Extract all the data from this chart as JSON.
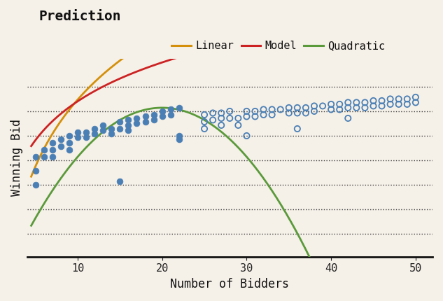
{
  "background_color": "#f5f0e8",
  "title": "Prediction",
  "xlabel": "Number of Bidders",
  "ylabel": "Winning Bid",
  "xlim": [
    4,
    52
  ],
  "ylim": [
    -0.05,
    1.08
  ],
  "legend_entries": [
    "Linear",
    "Model",
    "Quadratic"
  ],
  "linear_color": "#d4900a",
  "model_color": "#cc2222",
  "quadratic_color": "#5a9a3a",
  "scatter_filled_color": "#4a7fb5",
  "scatter_open_color": "#4a7fb5",
  "dotted_line_color": "#222222",
  "filled_scatter": [
    [
      5,
      0.52
    ],
    [
      5,
      0.44
    ],
    [
      5,
      0.36
    ],
    [
      6,
      0.56
    ],
    [
      6,
      0.52
    ],
    [
      7,
      0.6
    ],
    [
      7,
      0.56
    ],
    [
      7,
      0.52
    ],
    [
      8,
      0.62
    ],
    [
      8,
      0.58
    ],
    [
      9,
      0.64
    ],
    [
      9,
      0.6
    ],
    [
      9,
      0.56
    ],
    [
      10,
      0.66
    ],
    [
      10,
      0.63
    ],
    [
      11,
      0.66
    ],
    [
      11,
      0.63
    ],
    [
      12,
      0.68
    ],
    [
      12,
      0.65
    ],
    [
      13,
      0.7
    ],
    [
      13,
      0.67
    ],
    [
      14,
      0.68
    ],
    [
      14,
      0.65
    ],
    [
      15,
      0.72
    ],
    [
      15,
      0.68
    ],
    [
      16,
      0.73
    ],
    [
      16,
      0.7
    ],
    [
      16,
      0.67
    ],
    [
      17,
      0.74
    ],
    [
      17,
      0.71
    ],
    [
      18,
      0.75
    ],
    [
      18,
      0.72
    ],
    [
      19,
      0.76
    ],
    [
      19,
      0.73
    ],
    [
      20,
      0.78
    ],
    [
      20,
      0.75
    ],
    [
      21,
      0.79
    ],
    [
      21,
      0.76
    ],
    [
      22,
      0.8
    ],
    [
      22,
      0.64
    ],
    [
      22,
      0.62
    ],
    [
      15,
      0.38
    ]
  ],
  "open_scatter": [
    [
      25,
      0.76
    ],
    [
      25,
      0.72
    ],
    [
      25,
      0.68
    ],
    [
      26,
      0.77
    ],
    [
      26,
      0.73
    ],
    [
      27,
      0.77
    ],
    [
      27,
      0.74
    ],
    [
      27,
      0.7
    ],
    [
      28,
      0.78
    ],
    [
      28,
      0.74
    ],
    [
      29,
      0.74
    ],
    [
      29,
      0.7
    ],
    [
      30,
      0.78
    ],
    [
      30,
      0.75
    ],
    [
      30,
      0.64
    ],
    [
      31,
      0.78
    ],
    [
      31,
      0.75
    ],
    [
      32,
      0.79
    ],
    [
      32,
      0.76
    ],
    [
      33,
      0.79
    ],
    [
      33,
      0.76
    ],
    [
      34,
      0.79
    ],
    [
      35,
      0.8
    ],
    [
      35,
      0.77
    ],
    [
      36,
      0.8
    ],
    [
      36,
      0.77
    ],
    [
      36,
      0.68
    ],
    [
      37,
      0.8
    ],
    [
      37,
      0.77
    ],
    [
      38,
      0.81
    ],
    [
      38,
      0.78
    ],
    [
      39,
      0.81
    ],
    [
      40,
      0.82
    ],
    [
      40,
      0.79
    ],
    [
      41,
      0.82
    ],
    [
      41,
      0.79
    ],
    [
      42,
      0.83
    ],
    [
      42,
      0.8
    ],
    [
      42,
      0.74
    ],
    [
      43,
      0.83
    ],
    [
      43,
      0.8
    ],
    [
      44,
      0.83
    ],
    [
      44,
      0.8
    ],
    [
      45,
      0.84
    ],
    [
      45,
      0.81
    ],
    [
      46,
      0.84
    ],
    [
      46,
      0.81
    ],
    [
      47,
      0.85
    ],
    [
      47,
      0.82
    ],
    [
      48,
      0.85
    ],
    [
      48,
      0.82
    ],
    [
      49,
      0.85
    ],
    [
      49,
      0.82
    ],
    [
      50,
      0.86
    ],
    [
      50,
      0.83
    ]
  ],
  "model_log": {
    "a": 0.32,
    "b": 0.1
  },
  "linear_log": {
    "a": 0.55,
    "b": -0.42
  },
  "quadratic_params": {
    "a": -0.0028,
    "b": 0.112,
    "c": -0.32
  },
  "dotted_y_values": [
    0.08,
    0.22,
    0.36,
    0.5,
    0.64,
    0.78,
    0.92
  ],
  "xticks": [
    10,
    20,
    30,
    40,
    50
  ]
}
